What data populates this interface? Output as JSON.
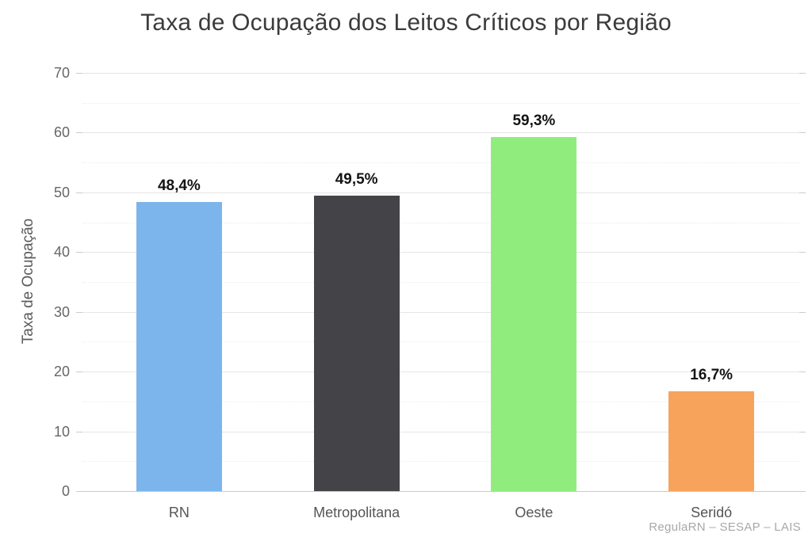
{
  "chart_data": {
    "type": "bar",
    "title": "Taxa de Ocupação dos Leitos Críticos por Região",
    "xlabel": "",
    "ylabel": "Taxa de Ocupação",
    "ylim": [
      0,
      70
    ],
    "ytick_step": 10,
    "ytick_labels": [
      "0",
      "10",
      "20",
      "30",
      "40",
      "50",
      "60",
      "70"
    ],
    "grid": true,
    "legend": "none",
    "categories": [
      "RN",
      "Metropolitana",
      "Oeste",
      "Seridó"
    ],
    "values": [
      48.4,
      49.5,
      59.3,
      16.7
    ],
    "value_labels": [
      "48,4%",
      "49,5%",
      "59,3%",
      "16,7%"
    ],
    "bar_colors": [
      "#7cb5ec",
      "#434348",
      "#90ed7d",
      "#f7a35c"
    ],
    "credits": "RegulaRN – SESAP – LAIS",
    "background_color": "#ffffff",
    "title_color": "#3b3b3b",
    "axis_label_color": "#666666"
  }
}
